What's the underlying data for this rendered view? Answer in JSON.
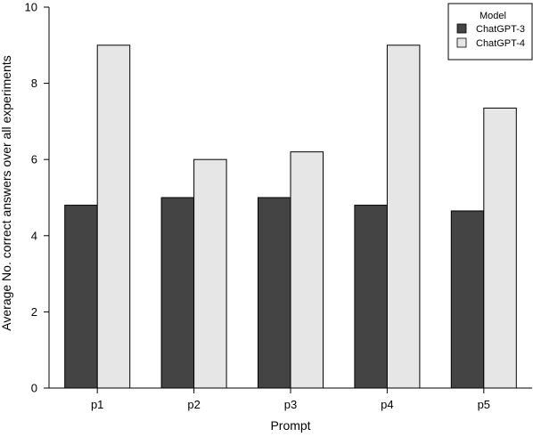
{
  "chart_data": {
    "type": "bar",
    "categories": [
      "p1",
      "p2",
      "p3",
      "p4",
      "p5"
    ],
    "series": [
      {
        "name": "ChatGPT-3",
        "values": [
          4.8,
          5.0,
          5.0,
          4.8,
          4.65
        ],
        "color": "#444444"
      },
      {
        "name": "ChatGPT-4",
        "values": [
          9.0,
          6.0,
          6.2,
          9.0,
          7.35
        ],
        "color": "#e6e6e6"
      }
    ],
    "title": "",
    "xlabel": "Prompt",
    "ylabel": "Average No. correct answers over all experiments",
    "ylim": [
      0,
      10
    ],
    "yticks": [
      "0",
      "2",
      "4",
      "6",
      "8",
      "10"
    ],
    "legend": {
      "title": "Model",
      "placement": "top-right"
    },
    "grid": false
  }
}
